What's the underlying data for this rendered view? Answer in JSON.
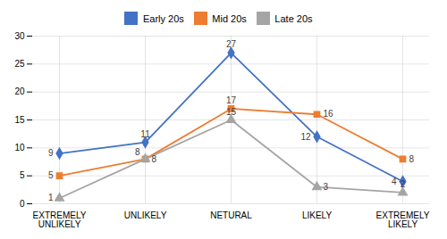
{
  "chart_data": {
    "type": "line",
    "categories": [
      "EXTREMELY\nUNLIKELY",
      "UNLIKELY",
      "NETURAL",
      "LIKELY",
      "EXTREMELY\nLIKELY"
    ],
    "series": [
      {
        "name": "Early 20s",
        "color": "#4472C4",
        "marker": "diamond",
        "values": [
          9,
          11,
          27,
          12,
          4
        ]
      },
      {
        "name": "Mid 20s",
        "color": "#ED7D31",
        "marker": "square",
        "values": [
          5,
          8,
          17,
          16,
          8
        ]
      },
      {
        "name": "Late 20s",
        "color": "#A5A5A5",
        "marker": "triangle",
        "values": [
          1,
          8,
          15,
          3,
          2
        ]
      }
    ],
    "ylim": [
      0,
      30
    ],
    "yticks": [
      0,
      5,
      10,
      15,
      20,
      25,
      30
    ],
    "grid": true,
    "legend": "top",
    "data_labels": true
  }
}
